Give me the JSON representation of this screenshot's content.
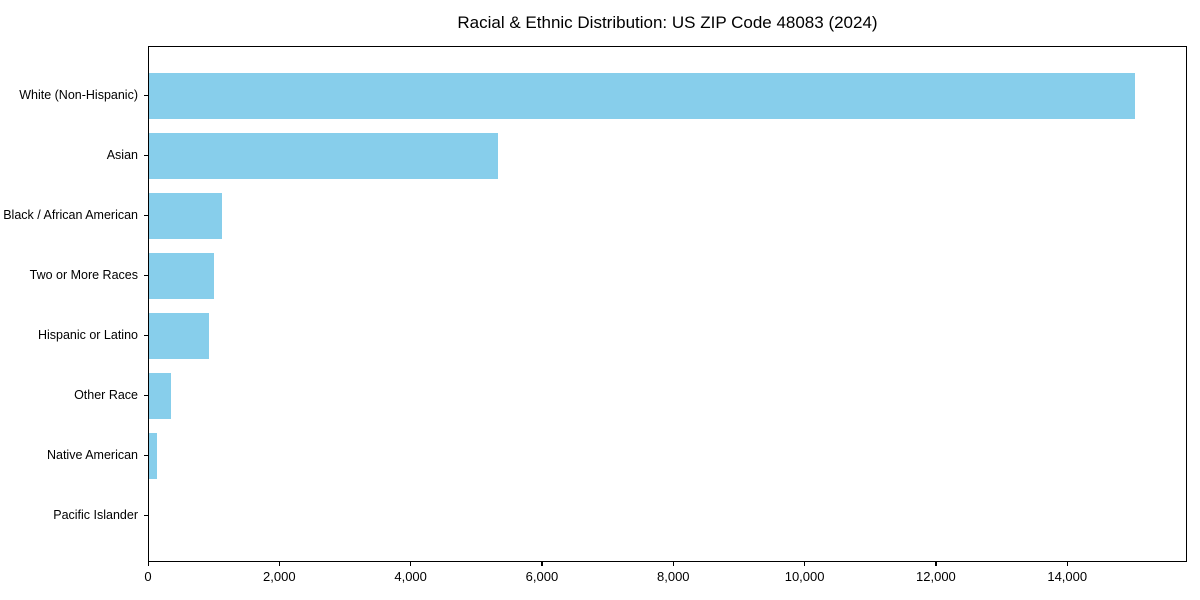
{
  "chart_data": {
    "type": "bar",
    "orientation": "horizontal",
    "title": "Racial & Ethnic Distribution: US ZIP Code 48083 (2024)",
    "categories": [
      "White (Non-Hispanic)",
      "Asian",
      "Black / African American",
      "Two or More Races",
      "Hispanic or Latino",
      "Other Race",
      "Native American",
      "Pacific Islander"
    ],
    "values": [
      15050,
      5320,
      1110,
      990,
      910,
      330,
      120,
      0
    ],
    "xlabel": "",
    "ylabel": "",
    "xlim": [
      0,
      15824
    ],
    "x_ticks": [
      0,
      2000,
      4000,
      6000,
      8000,
      10000,
      12000,
      14000
    ],
    "x_tick_labels": [
      "0",
      "2,000",
      "4,000",
      "6,000",
      "8,000",
      "10,000",
      "12,000",
      "14,000"
    ],
    "bar_color": "#87CEEB",
    "text_color": "#000000",
    "grid": false,
    "legend": null
  }
}
